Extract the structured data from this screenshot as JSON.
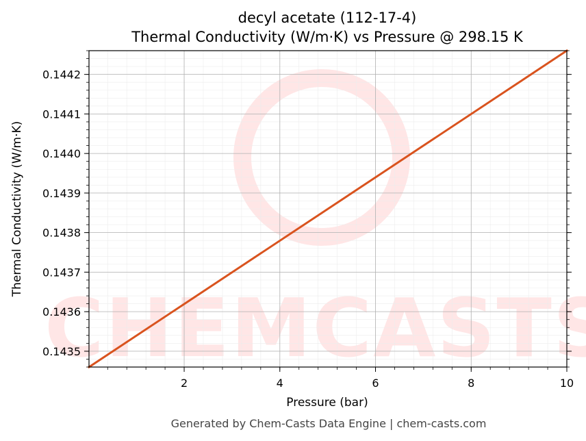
{
  "chart_data": {
    "type": "line",
    "title": "decyl acetate (112-17-4)",
    "subtitle": "Thermal Conductivity (W/m·K) vs Pressure @ 298.15 K",
    "xlabel": "Pressure (bar)",
    "ylabel": "Thermal Conductivity (W/m·K)",
    "xlim": [
      0.01,
      10
    ],
    "ylim": [
      0.14346,
      0.14426
    ],
    "x_ticks": [
      2,
      4,
      6,
      8,
      10
    ],
    "x_tick_labels": [
      "2",
      "4",
      "6",
      "8",
      "10"
    ],
    "y_ticks": [
      0.1435,
      0.1436,
      0.1437,
      0.1438,
      0.1439,
      0.144,
      0.1441,
      0.1442
    ],
    "y_tick_labels": [
      "0.1435",
      "0.1436",
      "0.1437",
      "0.1438",
      "0.1439",
      "0.1440",
      "0.1441",
      "0.1442"
    ],
    "grid": true,
    "series": [
      {
        "color": "#d9531e",
        "x": [
          0.01,
          10
        ],
        "y": [
          0.14346,
          0.14426
        ]
      }
    ]
  },
  "watermark": {
    "text": "CHEMCASTS",
    "color": "#ffe6e6"
  },
  "footer": "Generated by Chem-Casts Data Engine | chem-casts.com"
}
